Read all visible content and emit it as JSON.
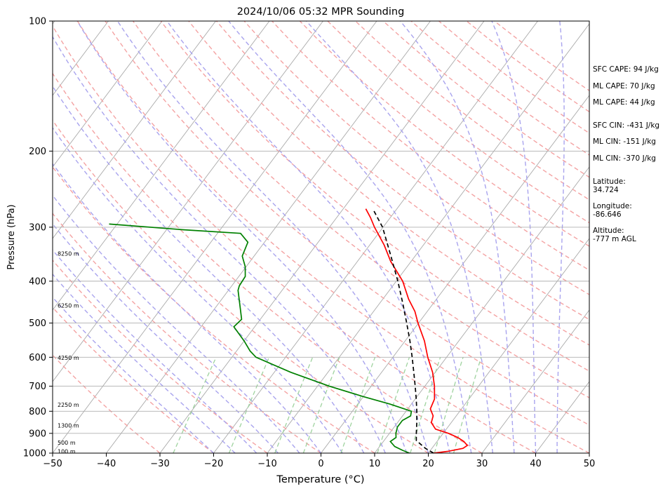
{
  "chart_data": {
    "type": "line",
    "subtype": "skew-t-log-p",
    "title": "2024/10/06 05:32 MPR Sounding",
    "xlabel": "Temperature (°C)",
    "ylabel": "Pressure (hPa)",
    "xlim": [
      -50,
      50
    ],
    "ylim": [
      1000,
      100
    ],
    "y_scale": "log",
    "x_ticks": [
      "−50",
      "−40",
      "−30",
      "−20",
      "−10",
      "0",
      "10",
      "20",
      "30",
      "40",
      "50"
    ],
    "x_tick_values": [
      -50,
      -40,
      -30,
      -20,
      -10,
      0,
      10,
      20,
      30,
      40,
      50
    ],
    "y_ticks": [
      "100",
      "200",
      "300",
      "400",
      "500",
      "600",
      "700",
      "800",
      "900",
      "1000"
    ],
    "y_tick_values": [
      100,
      200,
      300,
      400,
      500,
      600,
      700,
      800,
      900,
      1000
    ],
    "grid": true,
    "background_lines": {
      "isotherms": {
        "color": "#aaaaaa",
        "style": "solid"
      },
      "dry_adiabats": {
        "color": "#f4a3a3",
        "style": "dashed"
      },
      "moist_adiabats": {
        "color": "#a9a4ee",
        "style": "dashed"
      },
      "mixing_ratio_lines": {
        "color": "#9fd39f",
        "style": "dashed"
      }
    },
    "series": [
      {
        "role": "temperature",
        "color": "#ff0000",
        "style": "solid",
        "points": [
          {
            "p": 1000,
            "t": 21.0
          },
          {
            "p": 990,
            "t": 23.5
          },
          {
            "p": 975,
            "t": 25.8
          },
          {
            "p": 960,
            "t": 26.2
          },
          {
            "p": 940,
            "t": 25.0
          },
          {
            "p": 920,
            "t": 23.3
          },
          {
            "p": 900,
            "t": 21.0
          },
          {
            "p": 880,
            "t": 18.0
          },
          {
            "p": 850,
            "t": 16.3
          },
          {
            "p": 820,
            "t": 15.7
          },
          {
            "p": 790,
            "t": 14.2
          },
          {
            "p": 750,
            "t": 13.6
          },
          {
            "p": 700,
            "t": 11.8
          },
          {
            "p": 650,
            "t": 9.5
          },
          {
            "p": 600,
            "t": 6.5
          },
          {
            "p": 550,
            "t": 3.6
          },
          {
            "p": 500,
            "t": -0.1
          },
          {
            "p": 470,
            "t": -2.3
          },
          {
            "p": 440,
            "t": -5.2
          },
          {
            "p": 400,
            "t": -8.8
          },
          {
            "p": 360,
            "t": -13.8
          },
          {
            "p": 330,
            "t": -17.3
          },
          {
            "p": 300,
            "t": -21.6
          },
          {
            "p": 285,
            "t": -23.7
          },
          {
            "p": 272,
            "t": -25.8
          }
        ]
      },
      {
        "role": "dewpoint",
        "color": "#008000",
        "style": "solid",
        "points": [
          {
            "p": 1000,
            "t": 16.5
          },
          {
            "p": 985,
            "t": 14.8
          },
          {
            "p": 965,
            "t": 12.8
          },
          {
            "p": 940,
            "t": 11.3
          },
          {
            "p": 920,
            "t": 11.8
          },
          {
            "p": 900,
            "t": 11.2
          },
          {
            "p": 870,
            "t": 10.6
          },
          {
            "p": 840,
            "t": 10.6
          },
          {
            "p": 820,
            "t": 11.5
          },
          {
            "p": 800,
            "t": 11.0
          },
          {
            "p": 770,
            "t": 6.0
          },
          {
            "p": 740,
            "t": 0.0
          },
          {
            "p": 700,
            "t": -7.8
          },
          {
            "p": 650,
            "t": -16.9
          },
          {
            "p": 600,
            "t": -25.5
          },
          {
            "p": 580,
            "t": -27.5
          },
          {
            "p": 550,
            "t": -30.0
          },
          {
            "p": 510,
            "t": -33.9
          },
          {
            "p": 490,
            "t": -33.5
          },
          {
            "p": 450,
            "t": -36.1
          },
          {
            "p": 420,
            "t": -38.2
          },
          {
            "p": 410,
            "t": -38.6
          },
          {
            "p": 390,
            "t": -38.8
          },
          {
            "p": 370,
            "t": -40.2
          },
          {
            "p": 350,
            "t": -42.2
          },
          {
            "p": 325,
            "t": -43.1
          },
          {
            "p": 310,
            "t": -45.7
          },
          {
            "p": 304,
            "t": -57.0
          },
          {
            "p": 295,
            "t": -71.5
          }
        ]
      },
      {
        "role": "parcel-path",
        "color": "#000000",
        "style": "dashed",
        "points": [
          {
            "p": 1000,
            "t": 21.0
          },
          {
            "p": 975,
            "t": 18.8
          },
          {
            "p": 935,
            "t": 16.0
          },
          {
            "p": 900,
            "t": 15.0
          },
          {
            "p": 850,
            "t": 13.6
          },
          {
            "p": 800,
            "t": 12.0
          },
          {
            "p": 750,
            "t": 10.2
          },
          {
            "p": 700,
            "t": 8.2
          },
          {
            "p": 650,
            "t": 6.0
          },
          {
            "p": 600,
            "t": 3.6
          },
          {
            "p": 550,
            "t": 0.9
          },
          {
            "p": 500,
            "t": -2.2
          },
          {
            "p": 450,
            "t": -5.7
          },
          {
            "p": 400,
            "t": -9.7
          },
          {
            "p": 350,
            "t": -14.5
          },
          {
            "p": 300,
            "t": -20.1
          },
          {
            "p": 275,
            "t": -24.0
          }
        ]
      }
    ],
    "height_labels": [
      {
        "text": "100 m",
        "p": 991
      },
      {
        "text": "500 m",
        "p": 946
      },
      {
        "text": "1300 m",
        "p": 862
      },
      {
        "text": "2250 m",
        "p": 772
      },
      {
        "text": "4250 m",
        "p": 601
      },
      {
        "text": "6250 m",
        "p": 455
      },
      {
        "text": "8250 m",
        "p": 345
      }
    ],
    "side_info": [
      {
        "text": "SFC CAPE: 94 J/kg"
      },
      {
        "text": "ML CAPE: 70 J/kg"
      },
      {
        "text": "ML CAPE: 44 J/kg"
      },
      {
        "text": "SFC CIN: -431 J/kg"
      },
      {
        "text": "ML CIN: -151 J/kg"
      },
      {
        "text": "ML CIN: -370 J/kg"
      },
      {
        "text": "Latitude:"
      },
      {
        "text": "34.724"
      },
      {
        "text": "Longitude:"
      },
      {
        "text": "-86.646"
      },
      {
        "text": "Altitude:"
      },
      {
        "text": "-777 m AGL"
      }
    ]
  }
}
